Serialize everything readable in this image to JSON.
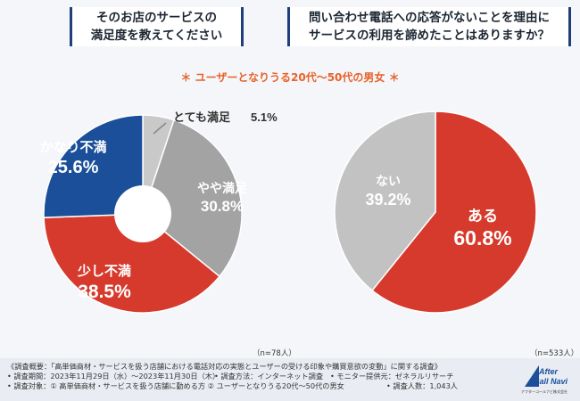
{
  "titles": {
    "left": [
      "そのお店のサービスの",
      "満足度を教えてください"
    ],
    "right": [
      "問い合わせ電話への応答がないことを理由に",
      "サービスの利用を諦めたことはありますか？"
    ]
  },
  "subtitle": "＊ ユーザーとなりうる20代〜50代の男女 ＊",
  "colors": {
    "very_satisfied": "#c9c9c9",
    "somewhat_satisfied": "#a3a3a3",
    "somewhat_dissatisfied": "#d63a2c",
    "very_dissatisfied": "#1b4f9a",
    "yes": "#d63a2c",
    "no": "#c2c2c2",
    "accent": "#e8622b",
    "title_border": "#1f3f7a"
  },
  "chart_data": [
    {
      "type": "pie",
      "title": "そのお店のサービスの満足度を教えてください",
      "donut": true,
      "n_label": "（n=78人）",
      "slices": [
        {
          "label": "とても満足",
          "value": 5.1,
          "display": "5.1%"
        },
        {
          "label": "やや満足",
          "value": 30.8,
          "display": "30.8%"
        },
        {
          "label": "少し不満",
          "value": 38.5,
          "display": "38.5%"
        },
        {
          "label": "かなり不満",
          "value": 25.6,
          "display": "25.6%"
        }
      ]
    },
    {
      "type": "pie",
      "title": "問い合わせ電話への応答がないことを理由にサービスの利用を諦めたことはありますか？",
      "donut": false,
      "n_label": "（n=533人）",
      "slices": [
        {
          "label": "ある",
          "value": 60.8,
          "display": "60.8%"
        },
        {
          "label": "ない",
          "value": 39.2,
          "display": "39.2%"
        }
      ]
    }
  ],
  "footer": {
    "line1": "《調査概要：「高単価商材・サービスを扱う店舗における電話対応の実態とユーザーの受ける印象や購買意欲の変動」に関する調査》",
    "line2a": "• 調査期間：2023年11月29日（水）〜2023年11月30日（木）",
    "line2b": "• 調査方法：インターネット調査",
    "line2c": "• モニター提供元：ゼネラルリサーチ",
    "line3a": "• 調査対象：① 高単価商材・サービスを扱う店舗に勤める方 ② ユーザーとなりうる20代〜50代の男女",
    "line3b": "• 調査人数：1,043人"
  },
  "logo": {
    "line1": "After",
    "line2": "Call Navi",
    "company": "アフターコールナビ株式会社"
  }
}
